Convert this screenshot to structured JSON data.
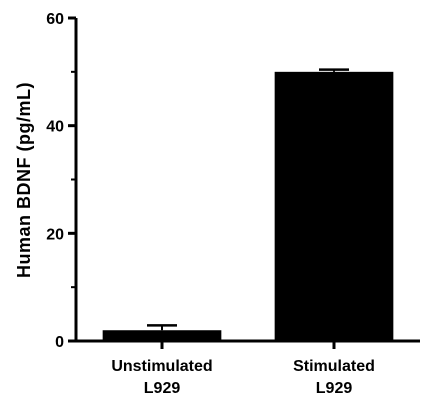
{
  "chart_data": {
    "type": "bar",
    "title": "",
    "xlabel": "",
    "ylabel": "Human BDNF (pg/mL)",
    "ylim": [
      0,
      60
    ],
    "yticks": [
      0,
      20,
      40,
      60
    ],
    "categories": [
      [
        "Unstimulated",
        "L929"
      ],
      [
        "Stimulated",
        "L929"
      ]
    ],
    "values": [
      2,
      50
    ],
    "error_upper": [
      2.9,
      50.4
    ],
    "grid": false,
    "legend": "none",
    "bar_color": "#000000"
  }
}
